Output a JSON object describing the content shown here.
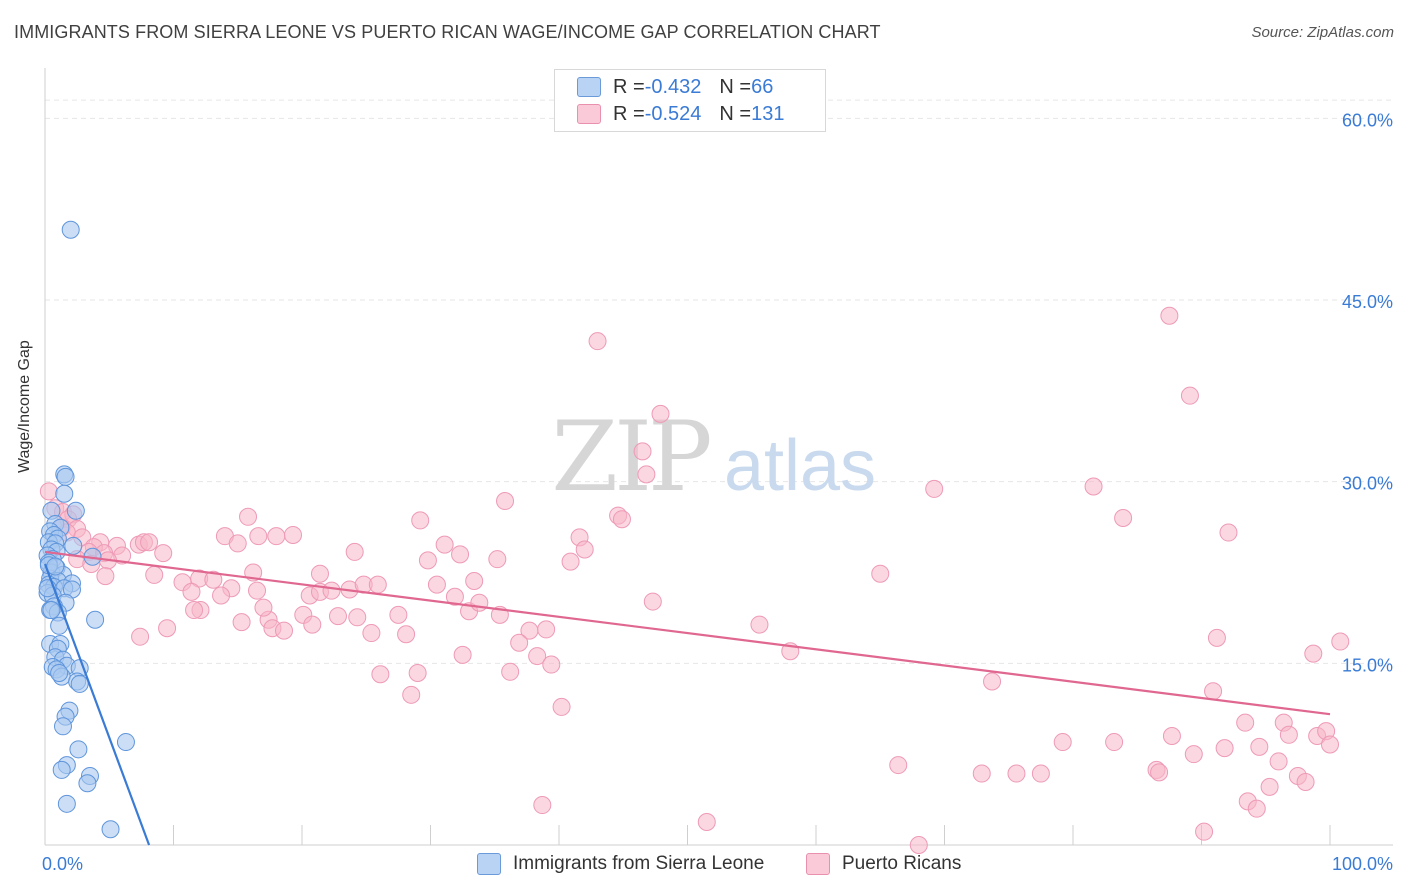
{
  "title": "IMMIGRANTS FROM SIERRA LEONE VS PUERTO RICAN WAGE/INCOME GAP CORRELATION CHART",
  "source": "Source: ZipAtlas.com",
  "watermark": {
    "zip": "ZIP",
    "atlas": "atlas"
  },
  "legend": {
    "rows": [
      {
        "r_label": "R = ",
        "r_value": "-0.432",
        "n_label": "N = ",
        "n_value": "66",
        "color": "#a8c8f0"
      },
      {
        "r_label": "R = ",
        "r_value": "-0.524",
        "n_label": "N = ",
        "n_value": "131",
        "color": "#f7b6c9"
      }
    ]
  },
  "bottom_legend": [
    {
      "label": "Immigrants from Sierra Leone",
      "color": "#a8c8f0"
    },
    {
      "label": "Puerto Ricans",
      "color": "#f7b6c9"
    }
  ],
  "chart_data": {
    "type": "scatter",
    "title": "IMMIGRANTS FROM SIERRA LEONE VS PUERTO RICAN WAGE/INCOME GAP CORRELATION CHART",
    "xlabel": "",
    "ylabel": "Wage/Income Gap",
    "xlim": [
      0,
      100
    ],
    "ylim": [
      0,
      63
    ],
    "x_tick_labels": {
      "left": "0.0%",
      "right": "100.0%"
    },
    "y_ticks": [
      15,
      30,
      45,
      60
    ],
    "y_tick_labels": [
      "15.0%",
      "30.0%",
      "45.0%",
      "60.0%"
    ],
    "grid": true,
    "series": [
      {
        "name": "Immigrants from Sierra Leone",
        "color": "#3a7bd5",
        "fill": "#a8c8f0",
        "r": -0.432,
        "n": 66,
        "trend": {
          "x": [
            0,
            8.1
          ],
          "y": [
            23.2,
            0
          ]
        },
        "points": [
          [
            2.0,
            50.8
          ],
          [
            1.5,
            30.6
          ],
          [
            1.6,
            30.4
          ],
          [
            1.5,
            29.0
          ],
          [
            0.5,
            27.6
          ],
          [
            2.4,
            27.6
          ],
          [
            0.8,
            26.5
          ],
          [
            1.2,
            26.2
          ],
          [
            0.4,
            25.9
          ],
          [
            0.7,
            25.6
          ],
          [
            1.0,
            25.3
          ],
          [
            0.3,
            25.0
          ],
          [
            0.8,
            24.9
          ],
          [
            2.2,
            24.7
          ],
          [
            0.5,
            24.4
          ],
          [
            0.9,
            24.2
          ],
          [
            0.2,
            23.9
          ],
          [
            3.7,
            23.8
          ],
          [
            0.6,
            23.6
          ],
          [
            0.3,
            23.3
          ],
          [
            0.9,
            22.9
          ],
          [
            0.5,
            22.5
          ],
          [
            1.4,
            22.3
          ],
          [
            0.4,
            22.0
          ],
          [
            1.0,
            21.8
          ],
          [
            2.1,
            21.6
          ],
          [
            0.3,
            21.5
          ],
          [
            0.7,
            21.3
          ],
          [
            1.5,
            21.2
          ],
          [
            2.1,
            21.1
          ],
          [
            0.2,
            20.8
          ],
          [
            0.6,
            20.6
          ],
          [
            1.6,
            20.0
          ],
          [
            0.7,
            19.7
          ],
          [
            0.4,
            19.4
          ],
          [
            1.0,
            19.2
          ],
          [
            3.9,
            18.6
          ],
          [
            1.1,
            18.1
          ],
          [
            0.4,
            16.6
          ],
          [
            1.2,
            16.6
          ],
          [
            1.0,
            16.2
          ],
          [
            0.8,
            15.5
          ],
          [
            1.4,
            15.3
          ],
          [
            1.7,
            14.8
          ],
          [
            0.6,
            14.7
          ],
          [
            2.7,
            14.6
          ],
          [
            0.9,
            14.5
          ],
          [
            1.3,
            13.9
          ],
          [
            2.5,
            13.5
          ],
          [
            2.7,
            13.3
          ],
          [
            1.9,
            11.1
          ],
          [
            1.6,
            10.6
          ],
          [
            1.4,
            9.8
          ],
          [
            6.3,
            8.5
          ],
          [
            2.6,
            7.9
          ],
          [
            1.7,
            6.6
          ],
          [
            1.3,
            6.2
          ],
          [
            3.5,
            5.7
          ],
          [
            3.3,
            5.1
          ],
          [
            1.7,
            3.4
          ],
          [
            5.1,
            1.3
          ],
          [
            0.3,
            23.1
          ],
          [
            0.5,
            19.4
          ],
          [
            1.1,
            14.2
          ],
          [
            0.2,
            21.2
          ],
          [
            0.8,
            23.0
          ]
        ]
      },
      {
        "name": "Puerto Ricans",
        "color": "#e0678f",
        "fill": "#f7b6c9",
        "r": -0.524,
        "n": 131,
        "trend": {
          "x": [
            0,
            100
          ],
          "y": [
            24.2,
            10.8
          ]
        },
        "points": [
          [
            0.3,
            29.2
          ],
          [
            0.8,
            27.8
          ],
          [
            1.4,
            27.5
          ],
          [
            2.2,
            27.3
          ],
          [
            1.8,
            26.9
          ],
          [
            1.3,
            26.2
          ],
          [
            2.5,
            26.1
          ],
          [
            1.7,
            25.8
          ],
          [
            2.9,
            25.4
          ],
          [
            4.3,
            25.0
          ],
          [
            3.8,
            24.6
          ],
          [
            3.4,
            24.2
          ],
          [
            2.5,
            23.6
          ],
          [
            5.6,
            24.7
          ],
          [
            7.3,
            24.8
          ],
          [
            4.6,
            24.1
          ],
          [
            7.7,
            25.0
          ],
          [
            8.1,
            25.0
          ],
          [
            6.0,
            23.9
          ],
          [
            4.9,
            23.5
          ],
          [
            9.2,
            24.1
          ],
          [
            3.6,
            23.2
          ],
          [
            4.7,
            22.2
          ],
          [
            8.5,
            22.3
          ],
          [
            12.0,
            22.0
          ],
          [
            10.7,
            21.7
          ],
          [
            13.1,
            21.9
          ],
          [
            14.5,
            21.2
          ],
          [
            11.4,
            20.9
          ],
          [
            13.7,
            20.6
          ],
          [
            12.1,
            19.4
          ],
          [
            11.6,
            19.4
          ],
          [
            9.5,
            17.9
          ],
          [
            7.4,
            17.2
          ],
          [
            15.8,
            27.1
          ],
          [
            14.0,
            25.5
          ],
          [
            15.0,
            24.9
          ],
          [
            16.6,
            25.5
          ],
          [
            16.2,
            22.5
          ],
          [
            16.5,
            21.0
          ],
          [
            15.3,
            18.4
          ],
          [
            17.4,
            18.6
          ],
          [
            17.7,
            17.9
          ],
          [
            18.6,
            17.7
          ],
          [
            19.3,
            25.6
          ],
          [
            20.1,
            19.0
          ],
          [
            20.6,
            20.6
          ],
          [
            21.4,
            20.9
          ],
          [
            20.8,
            18.2
          ],
          [
            21.4,
            22.4
          ],
          [
            22.3,
            21.0
          ],
          [
            23.7,
            21.1
          ],
          [
            22.8,
            18.9
          ],
          [
            24.1,
            24.2
          ],
          [
            24.8,
            21.5
          ],
          [
            25.9,
            21.5
          ],
          [
            24.3,
            18.8
          ],
          [
            25.4,
            17.5
          ],
          [
            26.1,
            14.1
          ],
          [
            27.5,
            19.0
          ],
          [
            28.1,
            17.4
          ],
          [
            29.2,
            26.8
          ],
          [
            29.8,
            23.5
          ],
          [
            30.5,
            21.5
          ],
          [
            31.1,
            24.8
          ],
          [
            32.3,
            24.0
          ],
          [
            31.9,
            20.5
          ],
          [
            33.4,
            21.8
          ],
          [
            33.0,
            19.3
          ],
          [
            33.8,
            20.0
          ],
          [
            32.5,
            15.7
          ],
          [
            35.2,
            23.6
          ],
          [
            35.8,
            28.4
          ],
          [
            35.4,
            19.0
          ],
          [
            36.2,
            14.3
          ],
          [
            37.7,
            17.7
          ],
          [
            36.9,
            16.7
          ],
          [
            38.3,
            15.6
          ],
          [
            39.0,
            17.8
          ],
          [
            39.4,
            14.9
          ],
          [
            40.2,
            11.4
          ],
          [
            40.9,
            23.4
          ],
          [
            41.6,
            25.4
          ],
          [
            42.0,
            24.4
          ],
          [
            43.0,
            41.6
          ],
          [
            44.6,
            27.2
          ],
          [
            44.9,
            26.9
          ],
          [
            46.5,
            32.5
          ],
          [
            46.8,
            30.6
          ],
          [
            47.3,
            20.1
          ],
          [
            47.9,
            35.6
          ],
          [
            29.0,
            14.2
          ],
          [
            28.5,
            12.4
          ],
          [
            18.0,
            25.5
          ],
          [
            17.0,
            19.6
          ],
          [
            38.7,
            3.3
          ],
          [
            51.5,
            1.9
          ],
          [
            55.6,
            18.2
          ],
          [
            58.0,
            16.0
          ],
          [
            65.0,
            22.4
          ],
          [
            66.4,
            6.6
          ],
          [
            68.0,
            0.0
          ],
          [
            69.2,
            29.4
          ],
          [
            72.9,
            5.9
          ],
          [
            73.7,
            13.5
          ],
          [
            75.6,
            5.9
          ],
          [
            77.5,
            5.9
          ],
          [
            79.2,
            8.5
          ],
          [
            81.6,
            29.6
          ],
          [
            83.2,
            8.5
          ],
          [
            83.9,
            27.0
          ],
          [
            86.5,
            6.2
          ],
          [
            86.7,
            6.0
          ],
          [
            87.5,
            43.7
          ],
          [
            87.7,
            9.0
          ],
          [
            89.1,
            37.1
          ],
          [
            89.4,
            7.5
          ],
          [
            90.2,
            1.1
          ],
          [
            90.9,
            12.7
          ],
          [
            91.2,
            17.1
          ],
          [
            91.8,
            8.0
          ],
          [
            92.1,
            25.8
          ],
          [
            93.4,
            10.1
          ],
          [
            93.6,
            3.6
          ],
          [
            94.3,
            3.0
          ],
          [
            94.5,
            8.1
          ],
          [
            95.3,
            4.8
          ],
          [
            96.0,
            6.9
          ],
          [
            96.4,
            10.1
          ],
          [
            96.8,
            9.1
          ],
          [
            97.5,
            5.7
          ],
          [
            98.1,
            5.2
          ],
          [
            99.0,
            9.0
          ],
          [
            99.7,
            9.4
          ],
          [
            100.0,
            8.3
          ],
          [
            98.7,
            15.8
          ],
          [
            100.8,
            16.8
          ]
        ]
      }
    ]
  }
}
